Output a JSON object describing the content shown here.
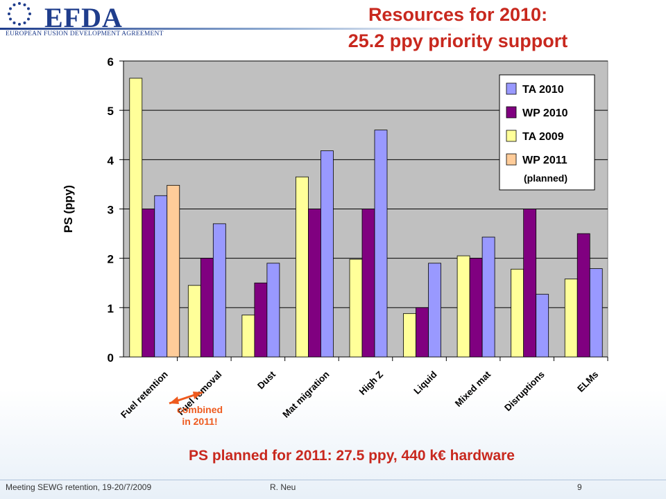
{
  "header": {
    "logo_text": "EFDA",
    "logo_subtitle": "EUROPEAN FUSION DEVELOPMENT AGREEMENT",
    "title_line1": "Resources for 2010:",
    "title_line2": "25.2 ppy priority support"
  },
  "annotation": {
    "line1": "combined",
    "line2": "in 2011!",
    "color": "#ee5a1e"
  },
  "bottom_note": "PS planned for 2011: 27.5 ppy, 440 k€ hardware",
  "footer": {
    "left": "Meeting SEWG retention, 19-20/7/2009",
    "middle": "R. Neu",
    "page": "9"
  },
  "chart_data": {
    "type": "bar",
    "title": "",
    "xlabel": "",
    "ylabel": "PS (ppy)",
    "ylim": [
      0,
      6
    ],
    "yticks": [
      0,
      1,
      2,
      3,
      4,
      5,
      6
    ],
    "grid": true,
    "legend_position": "top-right",
    "categories": [
      "Fuel retention",
      "Fuel removal",
      "Dust",
      "Mat migration",
      "High Z",
      "Liquid",
      "Mixed mat",
      "Disruptions",
      "ELMs"
    ],
    "series": [
      {
        "name": "TA 2009",
        "color": "#ffff99",
        "values": [
          5.65,
          1.45,
          0.85,
          3.65,
          1.98,
          0.88,
          2.05,
          1.78,
          1.58
        ]
      },
      {
        "name": "WP 2010",
        "color": "#800080",
        "values": [
          3.0,
          2.0,
          1.5,
          3.0,
          3.0,
          1.0,
          2.0,
          3.0,
          2.5
        ]
      },
      {
        "name": "TA 2010",
        "color": "#9999ff",
        "values": [
          3.27,
          2.7,
          1.9,
          4.18,
          4.6,
          1.9,
          2.43,
          1.27,
          1.79
        ]
      },
      {
        "name": "WP 2011",
        "color": "#ffcc99",
        "values": [
          3.48,
          null,
          null,
          null,
          null,
          null,
          null,
          null,
          null
        ]
      }
    ],
    "legend": [
      {
        "label": "TA 2010",
        "color": "#9999ff"
      },
      {
        "label": "WP 2010",
        "color": "#800080"
      },
      {
        "label": "TA 2009",
        "color": "#ffff99"
      },
      {
        "label": "WP 2011",
        "color": "#ffcc99",
        "note": "(planned)"
      }
    ],
    "plot_background": "#c0c0c0"
  }
}
